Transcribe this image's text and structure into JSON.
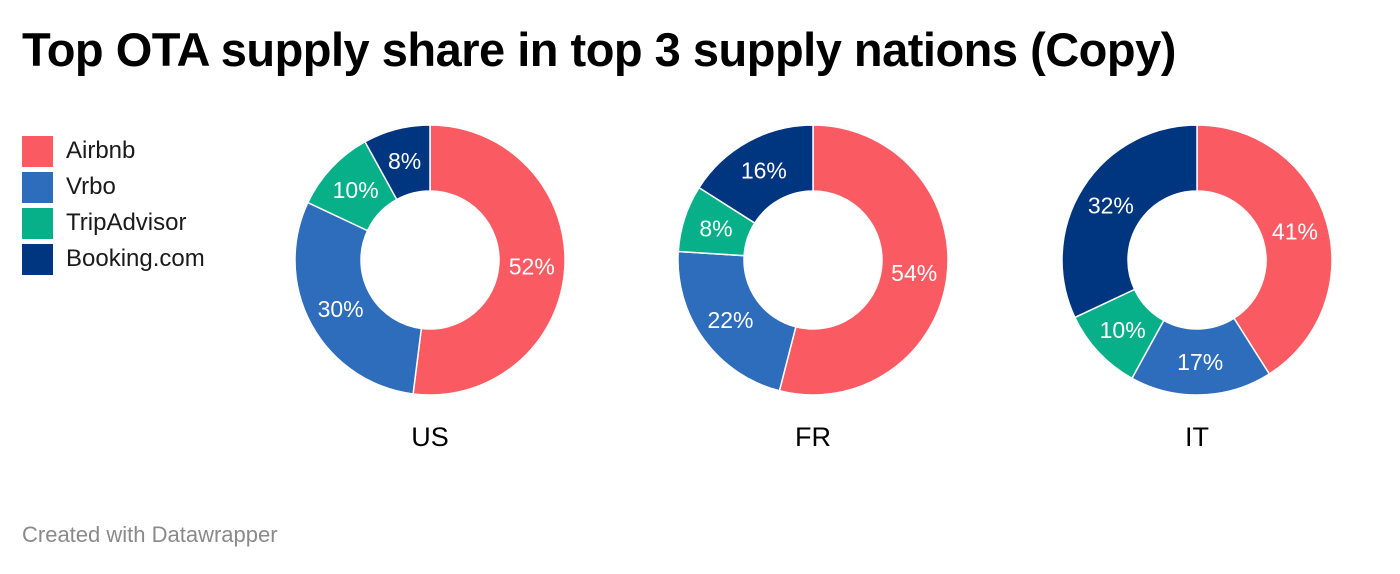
{
  "title": "Top OTA supply share in top 3 supply nations (Copy)",
  "footer": "Created with Datawrapper",
  "legend": [
    {
      "label": "Airbnb",
      "color": "#fa5a62"
    },
    {
      "label": "Vrbo",
      "color": "#2e6cbc"
    },
    {
      "label": "TripAdvisor",
      "color": "#07b088"
    },
    {
      "label": "Booking.com",
      "color": "#003580"
    }
  ],
  "chart_data": {
    "type": "pie",
    "subtype": "donut",
    "legend_position": "left",
    "series_names": [
      "Airbnb",
      "Vrbo",
      "TripAdvisor",
      "Booking.com"
    ],
    "colors": [
      "#fa5a62",
      "#2e6cbc",
      "#07b088",
      "#003580"
    ],
    "charts": [
      {
        "label": "US",
        "values": [
          52,
          30,
          10,
          8
        ],
        "value_labels": [
          "52%",
          "30%",
          "10%",
          "8%"
        ]
      },
      {
        "label": "FR",
        "values": [
          54,
          22,
          8,
          16
        ],
        "value_labels": [
          "54%",
          "22%",
          "8%",
          "16%"
        ]
      },
      {
        "label": "IT",
        "values": [
          41,
          17,
          10,
          32
        ],
        "value_labels": [
          "41%",
          "17%",
          "10%",
          "32%"
        ]
      }
    ]
  }
}
